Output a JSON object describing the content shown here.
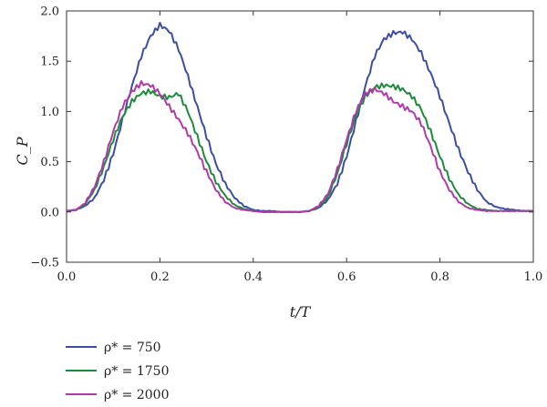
{
  "chart_data": {
    "type": "line",
    "title": "",
    "xlabel": "t/T",
    "ylabel": "C_P",
    "xlim": [
      0.0,
      1.0
    ],
    "ylim": [
      -0.5,
      2.0
    ],
    "x_ticks": [
      "0.0",
      "0.2",
      "0.4",
      "0.6",
      "0.8",
      "1.0"
    ],
    "y_ticks": [
      "−0.5",
      "0.0",
      "0.5",
      "1.0",
      "1.5",
      "2.0"
    ],
    "x_tick_values": [
      0.0,
      0.2,
      0.4,
      0.6,
      0.8,
      1.0
    ],
    "y_tick_values": [
      -0.5,
      0.0,
      0.5,
      1.0,
      1.5,
      2.0
    ],
    "grid": false,
    "legend_position": "bottom-left, below axes",
    "x": [
      0.0,
      0.02,
      0.04,
      0.06,
      0.08,
      0.1,
      0.12,
      0.14,
      0.16,
      0.18,
      0.2,
      0.22,
      0.24,
      0.26,
      0.28,
      0.3,
      0.32,
      0.34,
      0.36,
      0.38,
      0.4,
      0.42,
      0.44,
      0.46,
      0.48,
      0.5,
      0.52,
      0.54,
      0.56,
      0.58,
      0.6,
      0.62,
      0.64,
      0.66,
      0.68,
      0.7,
      0.72,
      0.74,
      0.76,
      0.78,
      0.8,
      0.82,
      0.84,
      0.86,
      0.88,
      0.9,
      0.92,
      0.94,
      0.96,
      0.98,
      1.0
    ],
    "series": [
      {
        "name": "ρ* = 750",
        "color": "#3a4ea6",
        "values": [
          0.01,
          0.02,
          0.06,
          0.14,
          0.32,
          0.58,
          0.92,
          1.25,
          1.55,
          1.75,
          1.86,
          1.8,
          1.62,
          1.35,
          1.05,
          0.75,
          0.48,
          0.28,
          0.14,
          0.06,
          0.02,
          0.01,
          0.01,
          0.0,
          0.0,
          0.0,
          0.01,
          0.04,
          0.12,
          0.28,
          0.55,
          0.9,
          1.25,
          1.55,
          1.72,
          1.78,
          1.79,
          1.72,
          1.58,
          1.38,
          1.15,
          0.88,
          0.62,
          0.4,
          0.22,
          0.1,
          0.05,
          0.03,
          0.02,
          0.01,
          0.01
        ]
      },
      {
        "name": "ρ* = 1750",
        "color": "#1f8a3c",
        "values": [
          0.01,
          0.02,
          0.08,
          0.22,
          0.45,
          0.72,
          0.95,
          1.1,
          1.18,
          1.2,
          1.15,
          1.14,
          1.18,
          1.0,
          0.75,
          0.5,
          0.3,
          0.16,
          0.07,
          0.03,
          0.01,
          0.0,
          0.0,
          0.0,
          0.0,
          0.0,
          0.01,
          0.05,
          0.15,
          0.38,
          0.68,
          0.96,
          1.15,
          1.24,
          1.26,
          1.25,
          1.22,
          1.15,
          1.02,
          0.8,
          0.55,
          0.33,
          0.17,
          0.08,
          0.03,
          0.02,
          0.01,
          0.01,
          0.01,
          0.01,
          0.01
        ]
      },
      {
        "name": "ρ* = 2000",
        "color": "#b03aaa",
        "values": [
          0.01,
          0.02,
          0.09,
          0.25,
          0.5,
          0.8,
          1.05,
          1.2,
          1.28,
          1.26,
          1.18,
          1.05,
          0.92,
          0.78,
          0.6,
          0.4,
          0.22,
          0.1,
          0.04,
          0.02,
          0.01,
          0.0,
          0.0,
          0.0,
          0.0,
          0.0,
          0.01,
          0.06,
          0.18,
          0.42,
          0.72,
          1.0,
          1.18,
          1.22,
          1.18,
          1.1,
          1.05,
          1.0,
          0.88,
          0.65,
          0.4,
          0.22,
          0.1,
          0.04,
          0.02,
          0.01,
          0.01,
          0.01,
          0.01,
          0.01,
          0.01
        ]
      }
    ]
  }
}
